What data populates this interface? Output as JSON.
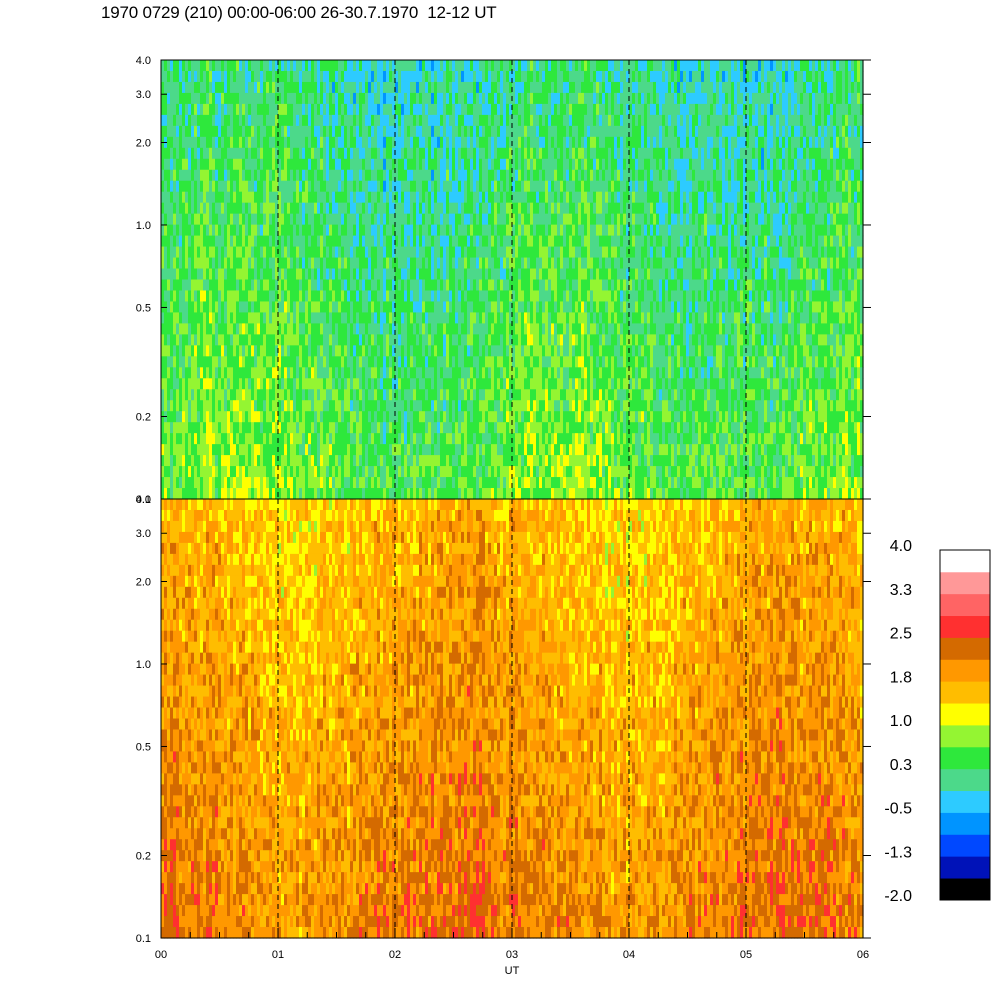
{
  "title": "1970 0729 (210) 00:00-06:00 26-30.7.1970  12-12 UT",
  "chart_data": {
    "type": "heatmap",
    "x_axis": {
      "label": "UT",
      "range": [
        0,
        6
      ],
      "ticks": [
        {
          "value": 0,
          "label": "00"
        },
        {
          "value": 1,
          "label": "01"
        },
        {
          "value": 2,
          "label": "02"
        },
        {
          "value": 3,
          "label": "03"
        },
        {
          "value": 4,
          "label": "04"
        },
        {
          "value": 5,
          "label": "05"
        },
        {
          "value": 6,
          "label": "06"
        }
      ],
      "minor_step": 0.25,
      "dashed_hour_lines": [
        1,
        2,
        3,
        4,
        5
      ]
    },
    "panels": [
      {
        "name": "upper",
        "y_axis": {
          "scale": "log",
          "range": [
            0.1,
            4.0
          ],
          "ticks": [
            {
              "value": 0.1,
              "label": "0.1"
            },
            {
              "value": 0.2,
              "label": "0.2"
            },
            {
              "value": 0.5,
              "label": "0.5"
            },
            {
              "value": 1.0,
              "label": "1.0"
            },
            {
              "value": 2.0,
              "label": "2.0"
            },
            {
              "value": 3.0,
              "label": "3.0"
            },
            {
              "value": 4.0,
              "label": "4.0"
            }
          ]
        },
        "dominant_level_range": [
          -0.5,
          1.0
        ]
      },
      {
        "name": "lower",
        "y_axis": {
          "scale": "log",
          "range": [
            0.1,
            4.0
          ],
          "ticks": [
            {
              "value": 0.1,
              "label": "0.1"
            },
            {
              "value": 0.2,
              "label": "0.2"
            },
            {
              "value": 0.5,
              "label": "0.5"
            },
            {
              "value": 1.0,
              "label": "1.0"
            },
            {
              "value": 2.0,
              "label": "2.0"
            },
            {
              "value": 3.0,
              "label": "3.0"
            },
            {
              "value": 4.0,
              "label": "4.0"
            }
          ]
        },
        "dominant_level_range": [
          0.8,
          2.2
        ]
      }
    ],
    "colorbar": {
      "min": -2.0,
      "max": 4.0,
      "labels": [
        "4.0",
        "3.3",
        "2.5",
        "1.8",
        "1.0",
        "0.3",
        "-0.5",
        "-1.3",
        "-2.0"
      ],
      "colors_low_to_high": [
        "#000000",
        "#0012b8",
        "#0048ff",
        "#0094ff",
        "#2dcbff",
        "#4cd98a",
        "#2ee83c",
        "#94f532",
        "#ffff00",
        "#ffbd00",
        "#ff9800",
        "#d46a00",
        "#ff3030",
        "#ff6464",
        "#ff9898",
        "#ffffff"
      ]
    }
  }
}
